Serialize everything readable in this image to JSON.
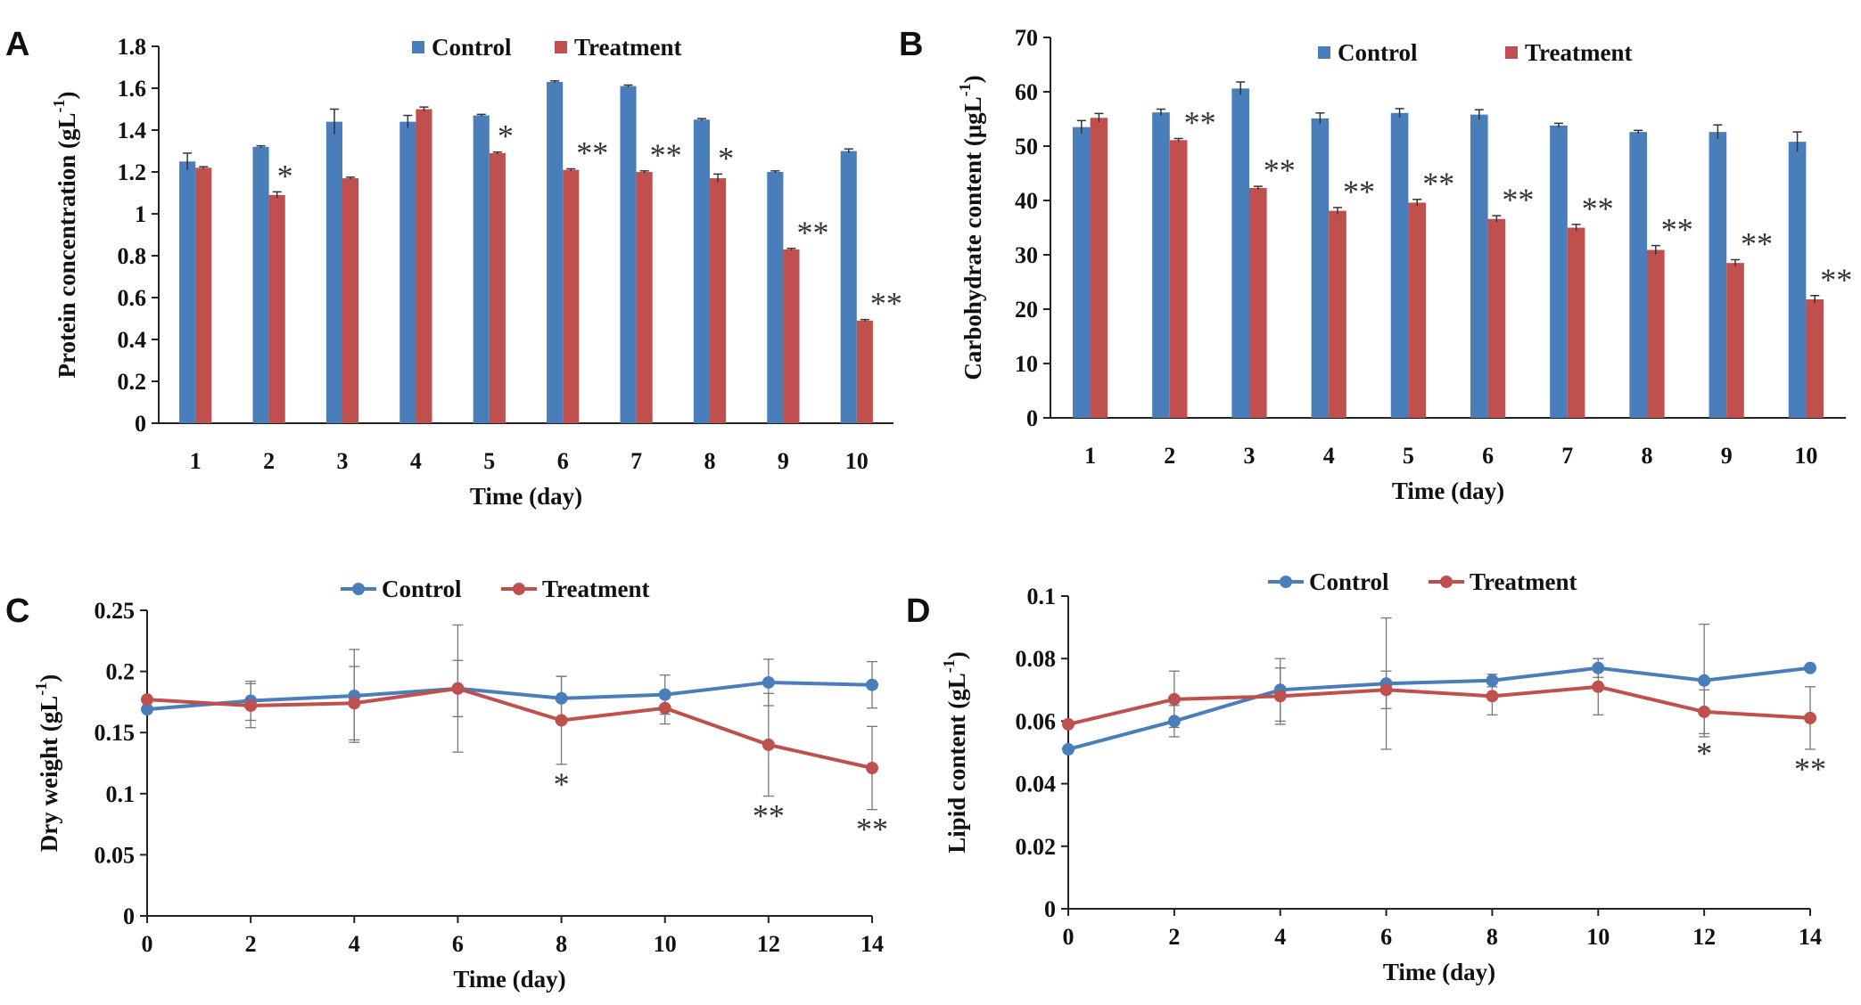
{
  "colors": {
    "control": "#4a7ebb",
    "treatment": "#c0504d",
    "axis": "#222222",
    "errorbar": "#333333"
  },
  "chart_data": [
    {
      "panel": "A",
      "type": "bar",
      "ylabel_main": "Protein concentration (gL",
      "ylabel_sup": "-1",
      "ylabel_close": ")",
      "xlabel": "Time (day)",
      "ylim": [
        0,
        1.8
      ],
      "yticks": [
        0,
        0.2,
        0.4,
        0.6,
        0.8,
        1,
        1.2,
        1.4,
        1.6,
        1.8
      ],
      "ytick_labels": [
        "0",
        "0.2",
        "0.4",
        "0.6",
        "0.8",
        "1",
        "1.2",
        "1.4",
        "1.6",
        "1.8"
      ],
      "categories": [
        "1",
        "2",
        "3",
        "4",
        "5",
        "6",
        "7",
        "8",
        "9",
        "10"
      ],
      "legend_position": "top-center",
      "series": [
        {
          "name": "Control",
          "values": [
            1.25,
            1.32,
            1.44,
            1.44,
            1.47,
            1.63,
            1.61,
            1.45,
            1.2,
            1.3
          ],
          "errors": [
            0.04,
            0.005,
            0.06,
            0.03,
            0.005,
            0.005,
            0.005,
            0.005,
            0.005,
            0.01
          ]
        },
        {
          "name": "Treatment",
          "values": [
            1.22,
            1.09,
            1.17,
            1.5,
            1.29,
            1.21,
            1.2,
            1.17,
            0.83,
            0.49
          ],
          "errors": [
            0.005,
            0.015,
            0.005,
            0.01,
            0.005,
            0.005,
            0.005,
            0.02,
            0.005,
            0.005
          ]
        }
      ],
      "significance": [
        "",
        "*",
        "",
        "",
        "*",
        "**",
        "**",
        "*",
        "**",
        "**"
      ]
    },
    {
      "panel": "B",
      "type": "bar",
      "ylabel_main": "Carbohydrate content (μgL",
      "ylabel_sup": "-1",
      "ylabel_close": ")",
      "xlabel": "Time (day)",
      "ylim": [
        0,
        70
      ],
      "yticks": [
        0,
        10,
        20,
        30,
        40,
        50,
        60,
        70
      ],
      "ytick_labels": [
        "0",
        "10",
        "20",
        "30",
        "40",
        "50",
        "60",
        "70"
      ],
      "categories": [
        "1",
        "2",
        "3",
        "4",
        "5",
        "6",
        "7",
        "8",
        "9",
        "10"
      ],
      "legend_position": "top-center",
      "series": [
        {
          "name": "Control",
          "values": [
            53.5,
            56.2,
            60.6,
            55.1,
            56.1,
            55.8,
            53.8,
            52.6,
            52.6,
            50.8
          ],
          "errors": [
            1.2,
            0.6,
            1.2,
            1.0,
            0.8,
            0.9,
            0.4,
            0.3,
            1.3,
            1.8
          ]
        },
        {
          "name": "Treatment",
          "values": [
            55.2,
            51.1,
            42.3,
            38.1,
            39.6,
            36.6,
            35.0,
            30.9,
            28.5,
            21.8
          ],
          "errors": [
            0.8,
            0.3,
            0.3,
            0.6,
            0.6,
            0.6,
            0.6,
            0.8,
            0.6,
            0.7
          ]
        }
      ],
      "significance": [
        "",
        "**",
        "**",
        "**",
        "**",
        "**",
        "**",
        "**",
        "**",
        "**"
      ]
    },
    {
      "panel": "C",
      "type": "line",
      "ylabel_main": "Dry weight (gL",
      "ylabel_sup": "-1",
      "ylabel_close": ")",
      "xlabel": "Time (day)",
      "ylim": [
        0,
        0.25
      ],
      "xlim": [
        0,
        14
      ],
      "yticks": [
        0,
        0.05,
        0.1,
        0.15,
        0.2,
        0.25
      ],
      "ytick_labels": [
        "0",
        "0.05",
        "0.1",
        "0.15",
        "0.2",
        "0.25"
      ],
      "x": [
        0,
        2,
        4,
        6,
        8,
        10,
        12,
        14
      ],
      "xtick_labels": [
        "0",
        "2",
        "4",
        "6",
        "8",
        "10",
        "12",
        "14"
      ],
      "legend_position": "top-center",
      "series": [
        {
          "name": "Control",
          "values": [
            0.169,
            0.176,
            0.18,
            0.186,
            0.178,
            0.181,
            0.191,
            0.189
          ],
          "errors": [
            0.0,
            0.016,
            0.038,
            0.052,
            0.018,
            0.016,
            0.019,
            0.019
          ]
        },
        {
          "name": "Treatment",
          "values": [
            0.177,
            0.172,
            0.174,
            0.186,
            0.16,
            0.17,
            0.14,
            0.121
          ],
          "errors": [
            0.0,
            0.018,
            0.03,
            0.023,
            0.036,
            0.013,
            0.042,
            0.034
          ]
        }
      ],
      "significance": [
        "",
        "",
        "",
        "",
        "*",
        "",
        "**",
        "**"
      ]
    },
    {
      "panel": "D",
      "type": "line",
      "ylabel_main": "Lipid content (gL",
      "ylabel_sup": "-1",
      "ylabel_close": ")",
      "xlabel": "Time (day)",
      "ylim": [
        0,
        0.1
      ],
      "xlim": [
        0,
        14
      ],
      "yticks": [
        0,
        0.02,
        0.04,
        0.06,
        0.08,
        0.1
      ],
      "ytick_labels": [
        "0",
        "0.02",
        "0.04",
        "0.06",
        "0.08",
        "0.1"
      ],
      "x": [
        0,
        2,
        4,
        6,
        8,
        10,
        12,
        14
      ],
      "xtick_labels": [
        "0",
        "2",
        "4",
        "6",
        "8",
        "10",
        "12",
        "14"
      ],
      "legend_position": "top-center",
      "series": [
        {
          "name": "Control",
          "values": [
            0.051,
            0.06,
            0.07,
            0.072,
            0.073,
            0.077,
            0.073,
            0.077
          ],
          "errors": [
            0.0,
            0.005,
            0.01,
            0.021,
            0.002,
            0.003,
            0.018,
            0.0
          ]
        },
        {
          "name": "Treatment",
          "values": [
            0.059,
            0.067,
            0.068,
            0.07,
            0.068,
            0.071,
            0.063,
            0.061
          ],
          "errors": [
            0.0,
            0.009,
            0.009,
            0.006,
            0.006,
            0.009,
            0.007,
            0.01
          ]
        }
      ],
      "significance": [
        "",
        "",
        "",
        "",
        "",
        "",
        "*",
        "**"
      ]
    }
  ]
}
